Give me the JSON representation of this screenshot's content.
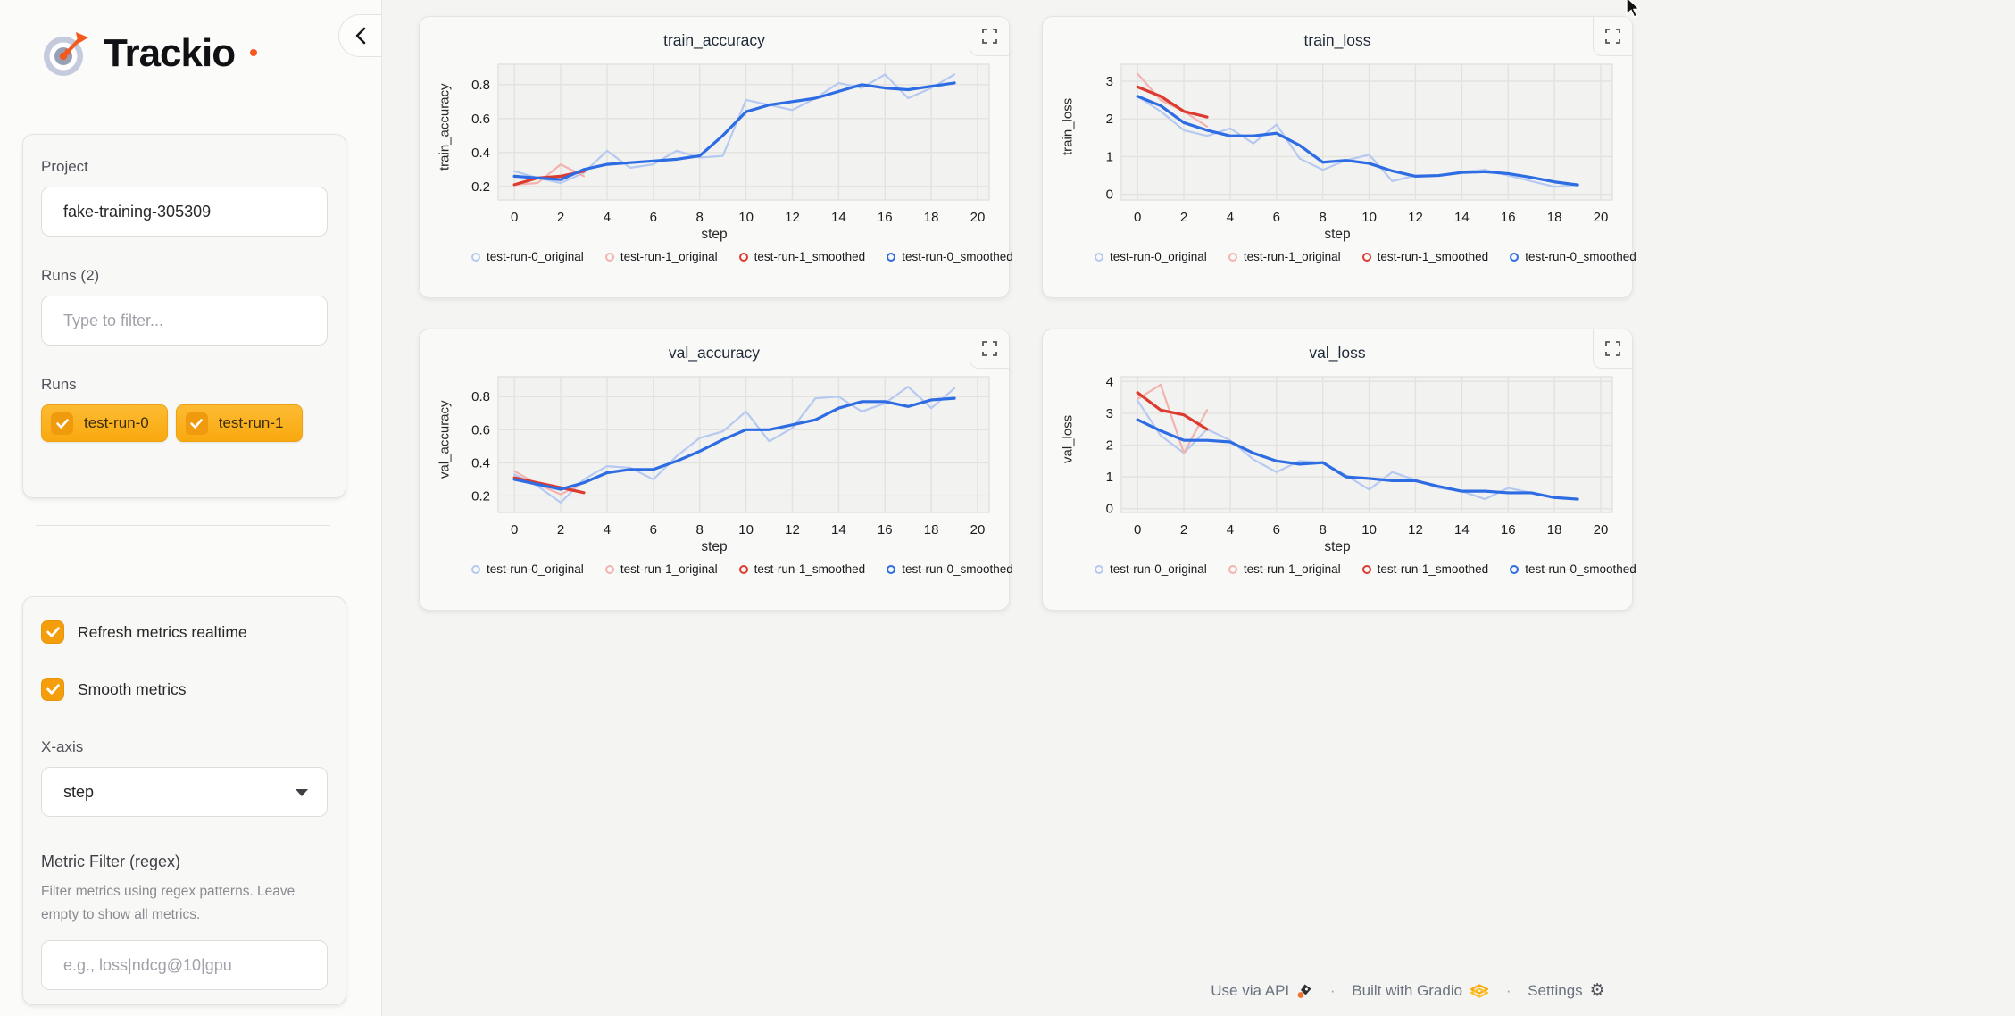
{
  "app": {
    "title": "Trackio"
  },
  "colors": {
    "accent_orange": "#f59e0b",
    "chip_yellow": "#fbb021",
    "dart_orange": "#f4591e",
    "run0_original": "#b5c9f1",
    "run0_smoothed": "#2e6ce4",
    "run1_original": "#f2b3af",
    "run1_smoothed": "#dd3b2f"
  },
  "sidebar": {
    "project": {
      "label": "Project",
      "value": "fake-training-305309"
    },
    "runs_count_label": "Runs (2)",
    "filter_placeholder": "Type to filter...",
    "runs_label": "Runs",
    "runs": [
      {
        "label": "test-run-0",
        "checked": true
      },
      {
        "label": "test-run-1",
        "checked": true
      }
    ],
    "settings": {
      "realtime_label": "Refresh metrics realtime",
      "realtime_checked": true,
      "smooth_label": "Smooth metrics",
      "smooth_checked": true,
      "xaxis_label": "X-axis",
      "xaxis_value": "step",
      "metric_filter_label": "Metric Filter (regex)",
      "metric_filter_info": "Filter metrics using regex patterns. Leave empty to show all metrics.",
      "metric_filter_placeholder": "e.g., loss|ndcg@10|gpu"
    }
  },
  "footer": {
    "use_via_api": "Use via API",
    "built_with_gradio": "Built with Gradio",
    "settings": "Settings",
    "separator": "·",
    "gear_glyph": "⚙"
  },
  "chart_data": [
    {
      "type": "line",
      "title": "train_accuracy",
      "xlabel": "step",
      "ylabel": "train_accuracy",
      "xlim": [
        -0.7,
        20.5
      ],
      "ylim": [
        0.12,
        0.92
      ],
      "xticks": [
        0,
        2,
        4,
        6,
        8,
        10,
        12,
        14,
        16,
        18,
        20
      ],
      "yticks": [
        0.2,
        0.4,
        0.6,
        0.8
      ],
      "grid": true,
      "legend_position": "bottom",
      "series": [
        {
          "name": "test-run-0_original",
          "color": "#b5c9f1",
          "width": 2.2,
          "x": [
            0,
            1,
            2,
            3,
            4,
            5,
            6,
            7,
            8,
            9,
            10,
            11,
            12,
            13,
            14,
            15,
            16,
            17,
            18,
            19
          ],
          "values": [
            0.29,
            0.25,
            0.22,
            0.28,
            0.41,
            0.31,
            0.33,
            0.41,
            0.37,
            0.38,
            0.71,
            0.68,
            0.65,
            0.72,
            0.81,
            0.78,
            0.86,
            0.72,
            0.78,
            0.86
          ]
        },
        {
          "name": "test-run-1_original",
          "color": "#f2b3af",
          "width": 2.2,
          "x": [
            0,
            1,
            2,
            3
          ],
          "values": [
            0.21,
            0.22,
            0.33,
            0.26
          ]
        },
        {
          "name": "test-run-1_smoothed",
          "color": "#dd3b2f",
          "width": 3.2,
          "x": [
            0,
            1,
            2,
            3
          ],
          "values": [
            0.21,
            0.25,
            0.26,
            0.29
          ]
        },
        {
          "name": "test-run-0_smoothed",
          "color": "#2e6ce4",
          "width": 3.2,
          "x": [
            0,
            1,
            2,
            3,
            4,
            5,
            6,
            7,
            8,
            9,
            10,
            11,
            12,
            13,
            14,
            15,
            16,
            17,
            18,
            19
          ],
          "values": [
            0.26,
            0.25,
            0.24,
            0.3,
            0.33,
            0.34,
            0.35,
            0.36,
            0.38,
            0.5,
            0.64,
            0.68,
            0.7,
            0.72,
            0.76,
            0.8,
            0.78,
            0.77,
            0.79,
            0.81
          ]
        }
      ]
    },
    {
      "type": "line",
      "title": "train_loss",
      "xlabel": "step",
      "ylabel": "train_loss",
      "xlim": [
        -0.7,
        20.5
      ],
      "ylim": [
        -0.15,
        3.45
      ],
      "xticks": [
        0,
        2,
        4,
        6,
        8,
        10,
        12,
        14,
        16,
        18,
        20
      ],
      "yticks": [
        0,
        1,
        2,
        3
      ],
      "grid": true,
      "legend_position": "bottom",
      "series": [
        {
          "name": "test-run-0_original",
          "color": "#b5c9f1",
          "width": 2.2,
          "x": [
            0,
            1,
            2,
            3,
            4,
            5,
            6,
            7,
            8,
            9,
            10,
            11,
            12,
            13,
            14,
            15,
            16,
            17,
            18,
            19
          ],
          "values": [
            2.6,
            2.2,
            1.7,
            1.55,
            1.75,
            1.35,
            1.85,
            0.95,
            0.65,
            0.9,
            1.05,
            0.35,
            0.5,
            0.5,
            0.6,
            0.65,
            0.5,
            0.35,
            0.2,
            0.25
          ]
        },
        {
          "name": "test-run-1_original",
          "color": "#f2b3af",
          "width": 2.2,
          "x": [
            0,
            1,
            2,
            3
          ],
          "values": [
            3.2,
            2.5,
            2.2,
            1.8
          ]
        },
        {
          "name": "test-run-1_smoothed",
          "color": "#dd3b2f",
          "width": 3.2,
          "x": [
            0,
            1,
            2,
            3
          ],
          "values": [
            2.85,
            2.6,
            2.2,
            2.05
          ]
        },
        {
          "name": "test-run-0_smoothed",
          "color": "#2e6ce4",
          "width": 3.2,
          "x": [
            0,
            1,
            2,
            3,
            4,
            5,
            6,
            7,
            8,
            9,
            10,
            11,
            12,
            13,
            14,
            15,
            16,
            17,
            18,
            19
          ],
          "values": [
            2.6,
            2.35,
            1.9,
            1.7,
            1.55,
            1.55,
            1.62,
            1.3,
            0.85,
            0.9,
            0.82,
            0.62,
            0.48,
            0.5,
            0.58,
            0.6,
            0.55,
            0.45,
            0.33,
            0.25
          ]
        }
      ]
    },
    {
      "type": "line",
      "title": "val_accuracy",
      "xlabel": "step",
      "ylabel": "val_accuracy",
      "xlim": [
        -0.7,
        20.5
      ],
      "ylim": [
        0.1,
        0.92
      ],
      "xticks": [
        0,
        2,
        4,
        6,
        8,
        10,
        12,
        14,
        16,
        18,
        20
      ],
      "yticks": [
        0.2,
        0.4,
        0.6,
        0.8
      ],
      "grid": true,
      "legend_position": "bottom",
      "series": [
        {
          "name": "test-run-0_original",
          "color": "#b5c9f1",
          "width": 2.2,
          "x": [
            0,
            1,
            2,
            3,
            4,
            5,
            6,
            7,
            8,
            9,
            10,
            11,
            12,
            13,
            14,
            15,
            16,
            17,
            18,
            19
          ],
          "values": [
            0.33,
            0.26,
            0.16,
            0.3,
            0.38,
            0.37,
            0.3,
            0.44,
            0.55,
            0.59,
            0.71,
            0.53,
            0.61,
            0.79,
            0.8,
            0.71,
            0.76,
            0.86,
            0.73,
            0.85
          ]
        },
        {
          "name": "test-run-1_original",
          "color": "#f2b3af",
          "width": 2.2,
          "x": [
            0,
            1,
            2,
            3
          ],
          "values": [
            0.35,
            0.27,
            0.21,
            0.28
          ]
        },
        {
          "name": "test-run-1_smoothed",
          "color": "#dd3b2f",
          "width": 3.2,
          "x": [
            0,
            1,
            2,
            3
          ],
          "values": [
            0.31,
            0.28,
            0.25,
            0.22
          ]
        },
        {
          "name": "test-run-0_smoothed",
          "color": "#2e6ce4",
          "width": 3.2,
          "x": [
            0,
            1,
            2,
            3,
            4,
            5,
            6,
            7,
            8,
            9,
            10,
            11,
            12,
            13,
            14,
            15,
            16,
            17,
            18,
            19
          ],
          "values": [
            0.3,
            0.27,
            0.24,
            0.28,
            0.34,
            0.36,
            0.36,
            0.41,
            0.47,
            0.54,
            0.6,
            0.6,
            0.63,
            0.66,
            0.73,
            0.77,
            0.77,
            0.74,
            0.78,
            0.79
          ]
        }
      ]
    },
    {
      "type": "line",
      "title": "val_loss",
      "xlabel": "step",
      "ylabel": "val_loss",
      "xlim": [
        -0.7,
        20.5
      ],
      "ylim": [
        -0.12,
        4.15
      ],
      "xticks": [
        0,
        2,
        4,
        6,
        8,
        10,
        12,
        14,
        16,
        18,
        20
      ],
      "yticks": [
        0,
        1,
        2,
        3,
        4
      ],
      "grid": true,
      "legend_position": "bottom",
      "series": [
        {
          "name": "test-run-0_original",
          "color": "#b5c9f1",
          "width": 2.2,
          "x": [
            0,
            1,
            2,
            3,
            4,
            5,
            6,
            7,
            8,
            9,
            10,
            11,
            12,
            13,
            14,
            15,
            16,
            17,
            18,
            19
          ],
          "values": [
            3.4,
            2.3,
            1.75,
            2.5,
            2.15,
            1.55,
            1.15,
            1.5,
            1.45,
            1.05,
            0.6,
            1.15,
            0.9,
            0.65,
            0.55,
            0.3,
            0.65,
            0.5,
            0.35,
            0.3
          ]
        },
        {
          "name": "test-run-1_original",
          "color": "#f2b3af",
          "width": 2.2,
          "x": [
            0,
            1,
            2,
            3
          ],
          "values": [
            3.45,
            3.9,
            1.75,
            3.1
          ]
        },
        {
          "name": "test-run-1_smoothed",
          "color": "#dd3b2f",
          "width": 3.2,
          "x": [
            0,
            1,
            2,
            3
          ],
          "values": [
            3.65,
            3.1,
            2.95,
            2.5
          ]
        },
        {
          "name": "test-run-0_smoothed",
          "color": "#2e6ce4",
          "width": 3.2,
          "x": [
            0,
            1,
            2,
            3,
            4,
            5,
            6,
            7,
            8,
            9,
            10,
            11,
            12,
            13,
            14,
            15,
            16,
            17,
            18,
            19
          ],
          "values": [
            2.8,
            2.45,
            2.15,
            2.15,
            2.1,
            1.75,
            1.5,
            1.4,
            1.45,
            1.0,
            0.95,
            0.88,
            0.88,
            0.7,
            0.55,
            0.55,
            0.5,
            0.5,
            0.35,
            0.3
          ]
        }
      ]
    }
  ]
}
